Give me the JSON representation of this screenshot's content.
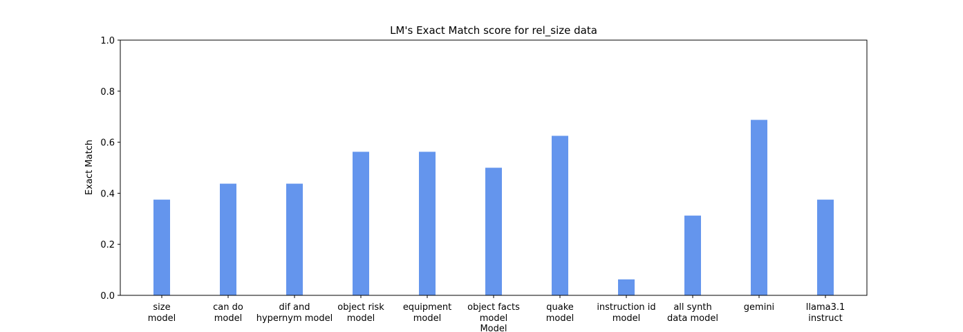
{
  "chart_data": {
    "type": "bar",
    "title": "LM's Exact Match score for rel_size data",
    "x_label": "Model",
    "y_label": "Exact Match",
    "categories": [
      "size\nmodel",
      "can do\nmodel",
      "dif and\nhypernym model",
      "object risk\nmodel",
      "equipment\nmodel",
      "object facts\nmodel",
      "quake\nmodel",
      "instruction id\nmodel",
      "all synth\ndata model",
      "gemini",
      "llama3.1\ninstruct"
    ],
    "values": [
      0.375,
      0.4375,
      0.4375,
      0.5625,
      0.5625,
      0.5,
      0.625,
      0.0625,
      0.3125,
      0.6875,
      0.375
    ],
    "color": "#6495ed",
    "ylim": [
      0,
      1
    ],
    "yticks": [
      {
        "value": 0,
        "label": "0.0"
      },
      0.2,
      0.4,
      0.6,
      0.8,
      {
        "value": 1,
        "label": "1.0"
      }
    ],
    "grid": false
  }
}
